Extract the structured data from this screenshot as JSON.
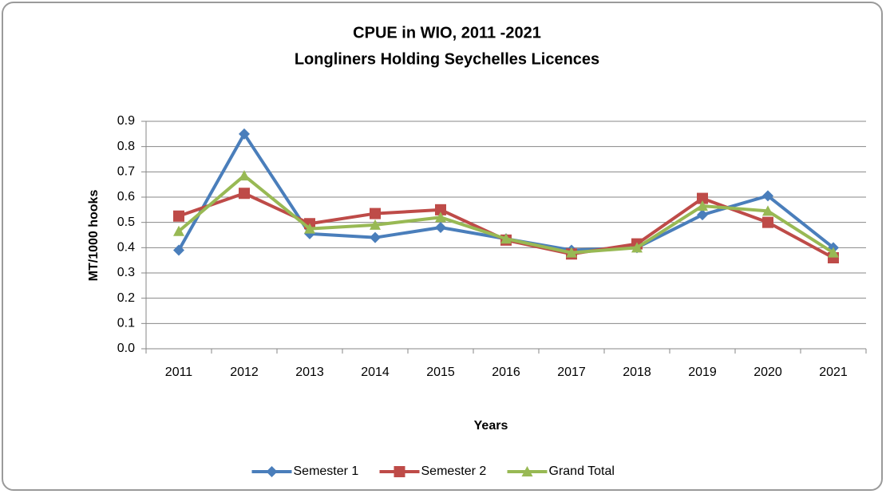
{
  "chart_data": {
    "type": "line",
    "title": "CPUE in WIO, 2011 -2021",
    "subtitle": "Longliners Holding Seychelles Licences",
    "x_label": "Years",
    "y_label": "MT/1000 hooks",
    "categories": [
      "2011",
      "2012",
      "2013",
      "2014",
      "2015",
      "2016",
      "2017",
      "2018",
      "2019",
      "2020",
      "2021"
    ],
    "series": [
      {
        "name": "Semester 1",
        "color": "#4a7ebb",
        "marker": "diamond",
        "values": [
          0.39,
          0.85,
          0.455,
          0.44,
          0.48,
          0.435,
          0.39,
          0.4,
          0.53,
          0.605,
          0.4
        ]
      },
      {
        "name": "Semester 2",
        "color": "#be4b48",
        "marker": "square",
        "values": [
          0.525,
          0.615,
          0.495,
          0.535,
          0.55,
          0.43,
          0.375,
          0.415,
          0.595,
          0.5,
          0.36
        ]
      },
      {
        "name": "Grand Total",
        "color": "#98b954",
        "marker": "triangle",
        "values": [
          0.465,
          0.685,
          0.475,
          0.49,
          0.52,
          0.435,
          0.38,
          0.4,
          0.565,
          0.545,
          0.38
        ]
      }
    ],
    "ylim": [
      0,
      0.9
    ],
    "yticks": [
      {
        "value": 0,
        "label": "0.0"
      },
      0.1,
      0.2,
      0.3,
      0.4,
      0.5,
      0.6,
      0.7,
      0.8,
      0.9
    ],
    "grid": true,
    "legend": "bottom"
  }
}
